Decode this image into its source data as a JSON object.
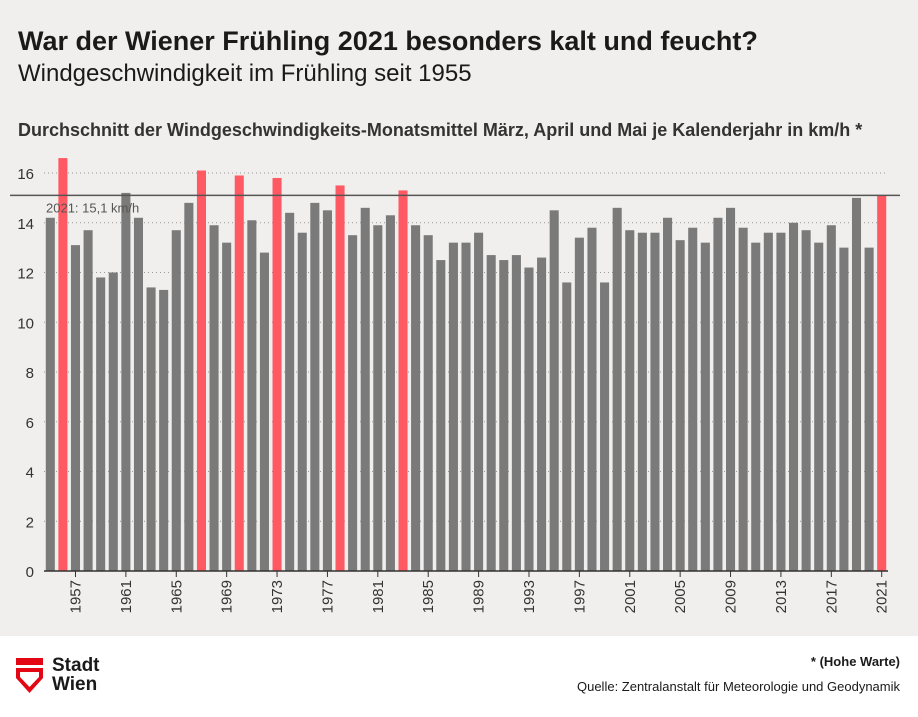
{
  "header": {
    "title": "War der Wiener Frühling 2021 besonders kalt und feucht?",
    "subtitle": "Windgeschwindigkeit im Frühling seit 1955",
    "chart_title": "Durchschnitt der Windgeschwindigkeits-Monatsmittel März, April und Mai je Kalenderjahr in km/h *"
  },
  "colors": {
    "background": "#f0efed",
    "bar_default": "#7a7a7a",
    "bar_highlight": "#ff5a64",
    "reference_line": "#555555"
  },
  "chart_data": {
    "type": "bar",
    "title": "Durchschnitt der Windgeschwindigkeits-Monatsmittel März, April und Mai je Kalenderjahr in km/h *",
    "xlabel": "",
    "ylabel": "km/h",
    "ylim": [
      0,
      17
    ],
    "yticks": [
      0,
      2,
      4,
      6,
      8,
      10,
      12,
      14,
      16
    ],
    "grid": true,
    "categories": [
      1955,
      1956,
      1957,
      1958,
      1959,
      1960,
      1961,
      1962,
      1963,
      1964,
      1965,
      1966,
      1967,
      1968,
      1969,
      1970,
      1971,
      1972,
      1973,
      1974,
      1975,
      1976,
      1977,
      1978,
      1979,
      1980,
      1981,
      1982,
      1983,
      1984,
      1985,
      1986,
      1987,
      1988,
      1989,
      1990,
      1991,
      1992,
      1993,
      1994,
      1995,
      1996,
      1997,
      1998,
      1999,
      2000,
      2001,
      2002,
      2003,
      2004,
      2005,
      2006,
      2007,
      2008,
      2009,
      2010,
      2011,
      2012,
      2013,
      2014,
      2015,
      2016,
      2017,
      2018,
      2019,
      2020,
      2021
    ],
    "xtick_labels": [
      "1957",
      "1961",
      "1965",
      "1969",
      "1973",
      "1977",
      "1981",
      "1985",
      "1989",
      "1993",
      "1997",
      "2001",
      "2005",
      "2009",
      "2013",
      "2017",
      "2021"
    ],
    "values": [
      14.2,
      16.6,
      13.1,
      13.7,
      11.8,
      12.0,
      15.2,
      14.2,
      11.4,
      11.3,
      13.7,
      14.8,
      16.1,
      13.9,
      13.2,
      15.9,
      14.1,
      12.8,
      15.8,
      14.4,
      13.6,
      14.8,
      14.5,
      15.5,
      13.5,
      14.6,
      13.9,
      14.3,
      15.3,
      13.9,
      13.5,
      12.5,
      13.2,
      13.2,
      13.6,
      12.7,
      12.5,
      12.7,
      12.2,
      12.6,
      14.5,
      11.6,
      13.4,
      13.8,
      11.6,
      14.6,
      13.7,
      13.6,
      13.6,
      14.2,
      13.3,
      13.8,
      13.2,
      14.2,
      14.6,
      13.8,
      13.2,
      13.6,
      13.6,
      14.0,
      13.7,
      13.2,
      13.9,
      13.0,
      15.0,
      13.0,
      15.1
    ],
    "highlighted": [
      1956,
      1967,
      1970,
      1973,
      1978,
      1983,
      2021
    ],
    "reference_line": {
      "value": 15.1,
      "label": "2021: 15,1 km/h"
    }
  },
  "footer": {
    "logo_line1": "Stadt",
    "logo_line2": "Wien",
    "note": "* (Hohe Warte)",
    "source": "Quelle: Zentralanstalt für Meteorologie und Geodynamik"
  }
}
